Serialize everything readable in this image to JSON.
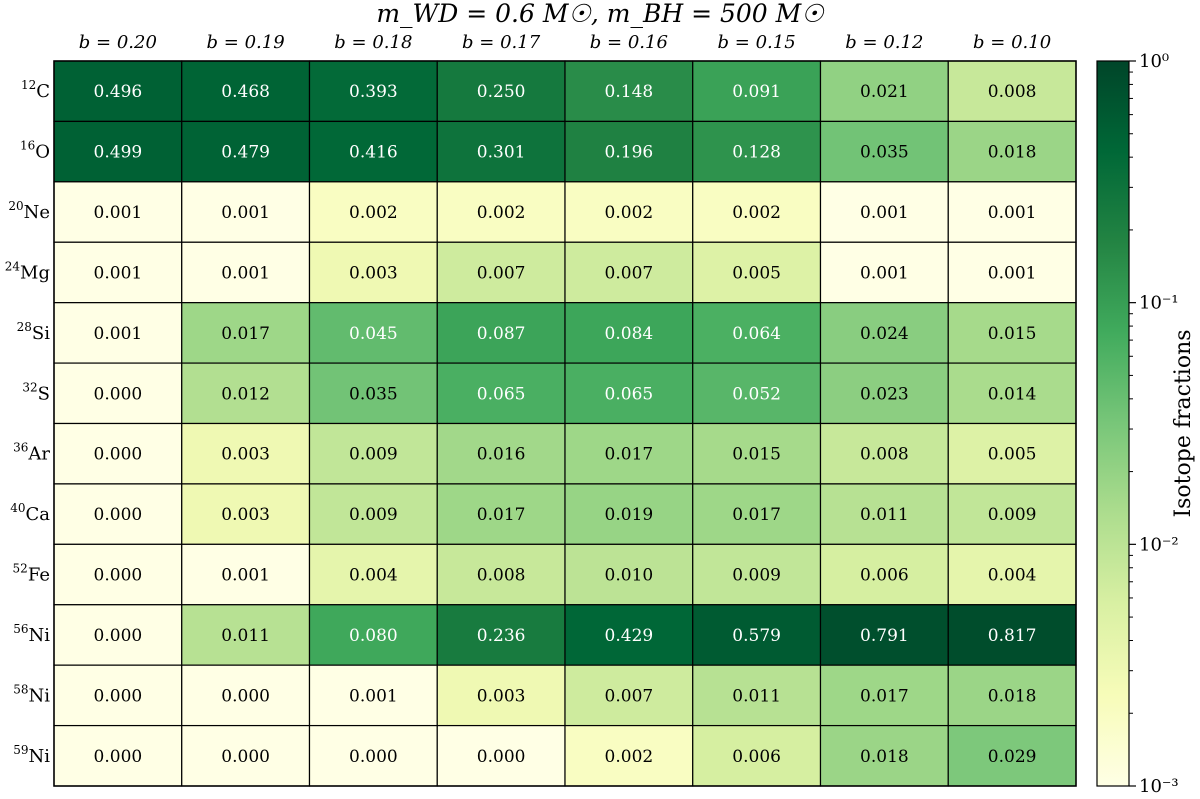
{
  "chart_data": {
    "type": "heatmap",
    "title": "m_WD = 0.6 M☉, m_BH = 500 M☉",
    "columns": [
      "b = 0.20",
      "b = 0.19",
      "b = 0.18",
      "b = 0.17",
      "b = 0.16",
      "b = 0.15",
      "b = 0.12",
      "b = 0.10"
    ],
    "rows": [
      {
        "mass": "12",
        "element": "C"
      },
      {
        "mass": "16",
        "element": "O"
      },
      {
        "mass": "20",
        "element": "Ne"
      },
      {
        "mass": "24",
        "element": "Mg"
      },
      {
        "mass": "28",
        "element": "Si"
      },
      {
        "mass": "32",
        "element": "S"
      },
      {
        "mass": "36",
        "element": "Ar"
      },
      {
        "mass": "40",
        "element": "Ca"
      },
      {
        "mass": "52",
        "element": "Fe"
      },
      {
        "mass": "56",
        "element": "Ni"
      },
      {
        "mass": "58",
        "element": "Ni"
      },
      {
        "mass": "59",
        "element": "Ni"
      }
    ],
    "values": [
      [
        "0.496",
        "0.468",
        "0.393",
        "0.250",
        "0.148",
        "0.091",
        "0.021",
        "0.008"
      ],
      [
        "0.499",
        "0.479",
        "0.416",
        "0.301",
        "0.196",
        "0.128",
        "0.035",
        "0.018"
      ],
      [
        "0.001",
        "0.001",
        "0.002",
        "0.002",
        "0.002",
        "0.002",
        "0.001",
        "0.001"
      ],
      [
        "0.001",
        "0.001",
        "0.003",
        "0.007",
        "0.007",
        "0.005",
        "0.001",
        "0.001"
      ],
      [
        "0.001",
        "0.017",
        "0.045",
        "0.087",
        "0.084",
        "0.064",
        "0.024",
        "0.015"
      ],
      [
        "0.000",
        "0.012",
        "0.035",
        "0.065",
        "0.065",
        "0.052",
        "0.023",
        "0.014"
      ],
      [
        "0.000",
        "0.003",
        "0.009",
        "0.016",
        "0.017",
        "0.015",
        "0.008",
        "0.005"
      ],
      [
        "0.000",
        "0.003",
        "0.009",
        "0.017",
        "0.019",
        "0.017",
        "0.011",
        "0.009"
      ],
      [
        "0.000",
        "0.001",
        "0.004",
        "0.008",
        "0.010",
        "0.009",
        "0.006",
        "0.004"
      ],
      [
        "0.000",
        "0.011",
        "0.080",
        "0.236",
        "0.429",
        "0.579",
        "0.791",
        "0.817"
      ],
      [
        "0.000",
        "0.000",
        "0.001",
        "0.003",
        "0.007",
        "0.011",
        "0.017",
        "0.018"
      ],
      [
        "0.000",
        "0.000",
        "0.000",
        "0.000",
        "0.002",
        "0.006",
        "0.018",
        "0.029"
      ]
    ],
    "colorbar": {
      "label": "Isotope fractions",
      "scale": "log",
      "range": [
        0.001,
        1
      ],
      "ticks": [
        {
          "value": 1,
          "label": "10⁰"
        },
        {
          "value": 0.1,
          "label": "10⁻¹"
        },
        {
          "value": 0.01,
          "label": "10⁻²"
        },
        {
          "value": 0.001,
          "label": "10⁻³"
        }
      ]
    },
    "colormap": [
      "#ffffe5",
      "#f7fcb9",
      "#d9f0a3",
      "#addd8e",
      "#78c679",
      "#41ab5d",
      "#238443",
      "#006837",
      "#004529"
    ]
  }
}
